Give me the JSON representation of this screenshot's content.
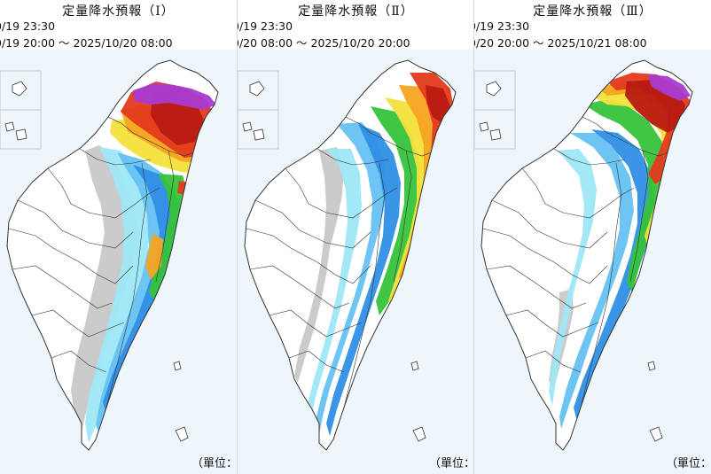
{
  "panels": [
    {
      "id": "I",
      "title": "定量降水預報（Ⅰ）",
      "issued": "0/19 23:30",
      "valid": "0/19 20:00 ～ 2025/10/20 08:00",
      "unit_label": "（單位：毫"
    },
    {
      "id": "II",
      "title": "定量降水預報（Ⅱ）",
      "issued": "0/19 23:30",
      "valid": "0/20 08:00 ～ 2025/10/20 20:00",
      "unit_label": "（單位：毫"
    },
    {
      "id": "III",
      "title": "定量降水預報（Ⅲ）",
      "issued": "0/19 23:30",
      "valid": "0/20 20:00 ～ 2025/10/21 08:00",
      "unit_label": "（單位：毫"
    }
  ],
  "colors": {
    "sea": "#eef6fb",
    "land_dry": "#ffffff",
    "gray": "#c8c8c8",
    "cyan_light": "#9ee7f5",
    "blue_light": "#66c2f2",
    "blue": "#2f8fe6",
    "green": "#36c23a",
    "yellow": "#f4e23c",
    "orange": "#f5a421",
    "red": "#e43a1c",
    "darkred": "#b81a12",
    "magenta": "#a83bd0",
    "border": "#333333"
  }
}
